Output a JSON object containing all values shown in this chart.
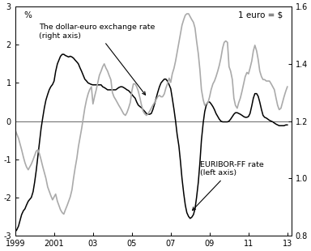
{
  "title_left": "%",
  "title_right": "1 euro = $",
  "left_label": "EURIBOR-FF rate\n(left axis)",
  "right_label": "The dollar-euro exchange rate\n(right axis)",
  "left_ylim": [
    -3,
    3
  ],
  "right_ylim": [
    0.8,
    1.6
  ],
  "left_yticks": [
    -3,
    -2,
    -1,
    0,
    1,
    2,
    3
  ],
  "right_yticks": [
    0.8,
    1.0,
    1.2,
    1.4,
    1.6
  ],
  "xticks": [
    1999,
    2001,
    2003,
    2005,
    2007,
    2009,
    2011,
    2013
  ],
  "xticklabels": [
    "1999",
    "2001",
    "03",
    "05",
    "07",
    "09",
    "11",
    "13"
  ],
  "xlim": [
    1999.0,
    2013.2
  ],
  "line_black_color": "#000000",
  "line_gray_color": "#aaaaaa",
  "background_color": "#ffffff",
  "zero_line_color": "#666666",
  "euribor_ff": {
    "x": [
      1999.0,
      1999.08,
      1999.17,
      1999.25,
      1999.33,
      1999.42,
      1999.5,
      1999.58,
      1999.67,
      1999.75,
      1999.83,
      1999.92,
      2000.0,
      2000.08,
      2000.17,
      2000.25,
      2000.33,
      2000.42,
      2000.5,
      2000.58,
      2000.67,
      2000.75,
      2000.83,
      2000.92,
      2001.0,
      2001.08,
      2001.17,
      2001.25,
      2001.33,
      2001.42,
      2001.5,
      2001.58,
      2001.67,
      2001.75,
      2001.83,
      2001.92,
      2002.0,
      2002.08,
      2002.17,
      2002.25,
      2002.33,
      2002.42,
      2002.5,
      2002.58,
      2002.67,
      2002.75,
      2002.83,
      2002.92,
      2003.0,
      2003.08,
      2003.17,
      2003.25,
      2003.33,
      2003.42,
      2003.5,
      2003.58,
      2003.67,
      2003.75,
      2003.83,
      2003.92,
      2004.0,
      2004.08,
      2004.17,
      2004.25,
      2004.33,
      2004.42,
      2004.5,
      2004.58,
      2004.67,
      2004.75,
      2004.83,
      2004.92,
      2005.0,
      2005.08,
      2005.17,
      2005.25,
      2005.33,
      2005.42,
      2005.5,
      2005.58,
      2005.67,
      2005.75,
      2005.83,
      2005.92,
      2006.0,
      2006.08,
      2006.17,
      2006.25,
      2006.33,
      2006.42,
      2006.5,
      2006.58,
      2006.67,
      2006.75,
      2006.83,
      2006.92,
      2007.0,
      2007.08,
      2007.17,
      2007.25,
      2007.33,
      2007.42,
      2007.5,
      2007.58,
      2007.67,
      2007.75,
      2007.83,
      2007.92,
      2008.0,
      2008.08,
      2008.17,
      2008.25,
      2008.33,
      2008.42,
      2008.5,
      2008.58,
      2008.67,
      2008.75,
      2008.83,
      2008.92,
      2009.0,
      2009.08,
      2009.17,
      2009.25,
      2009.33,
      2009.42,
      2009.5,
      2009.58,
      2009.67,
      2009.75,
      2009.83,
      2009.92,
      2010.0,
      2010.08,
      2010.17,
      2010.25,
      2010.33,
      2010.42,
      2010.5,
      2010.58,
      2010.67,
      2010.75,
      2010.83,
      2010.92,
      2011.0,
      2011.08,
      2011.17,
      2011.25,
      2011.33,
      2011.42,
      2011.5,
      2011.58,
      2011.67,
      2011.75,
      2011.83,
      2011.92,
      2012.0,
      2012.08,
      2012.17,
      2012.25,
      2012.33,
      2012.42,
      2012.5,
      2012.58,
      2012.67,
      2012.75,
      2012.83,
      2012.92,
      2013.0
    ],
    "y": [
      -2.9,
      -2.85,
      -2.75,
      -2.6,
      -2.45,
      -2.35,
      -2.3,
      -2.2,
      -2.1,
      -2.05,
      -2.0,
      -1.85,
      -1.6,
      -1.3,
      -0.9,
      -0.55,
      -0.2,
      0.1,
      0.35,
      0.55,
      0.7,
      0.82,
      0.9,
      0.96,
      1.05,
      1.3,
      1.5,
      1.6,
      1.7,
      1.75,
      1.75,
      1.72,
      1.7,
      1.68,
      1.7,
      1.68,
      1.65,
      1.6,
      1.55,
      1.5,
      1.4,
      1.3,
      1.2,
      1.1,
      1.05,
      1.0,
      0.98,
      0.96,
      0.95,
      0.95,
      0.95,
      0.95,
      0.95,
      0.95,
      0.9,
      0.88,
      0.85,
      0.82,
      0.82,
      0.82,
      0.82,
      0.82,
      0.82,
      0.85,
      0.88,
      0.9,
      0.9,
      0.88,
      0.85,
      0.82,
      0.8,
      0.75,
      0.7,
      0.65,
      0.6,
      0.5,
      0.42,
      0.38,
      0.35,
      0.3,
      0.25,
      0.2,
      0.18,
      0.18,
      0.2,
      0.3,
      0.45,
      0.6,
      0.75,
      0.9,
      1.0,
      1.05,
      1.1,
      1.1,
      1.05,
      0.95,
      0.85,
      0.6,
      0.3,
      0.0,
      -0.35,
      -0.65,
      -1.05,
      -1.5,
      -1.9,
      -2.2,
      -2.4,
      -2.5,
      -2.55,
      -2.52,
      -2.45,
      -2.3,
      -2.0,
      -1.6,
      -1.1,
      -0.5,
      -0.05,
      0.25,
      0.42,
      0.5,
      0.5,
      0.45,
      0.38,
      0.3,
      0.2,
      0.12,
      0.05,
      0.0,
      -0.02,
      -0.02,
      -0.02,
      -0.02,
      0.0,
      0.05,
      0.12,
      0.18,
      0.22,
      0.22,
      0.2,
      0.18,
      0.15,
      0.12,
      0.1,
      0.1,
      0.12,
      0.2,
      0.4,
      0.6,
      0.72,
      0.72,
      0.65,
      0.5,
      0.3,
      0.15,
      0.1,
      0.08,
      0.05,
      0.02,
      0.0,
      -0.02,
      -0.05,
      -0.08,
      -0.1,
      -0.12,
      -0.12,
      -0.12,
      -0.12,
      -0.1,
      -0.1
    ]
  },
  "exchange_rate": {
    "x": [
      1999.0,
      1999.08,
      1999.17,
      1999.25,
      1999.33,
      1999.42,
      1999.5,
      1999.58,
      1999.67,
      1999.75,
      1999.83,
      1999.92,
      2000.0,
      2000.08,
      2000.17,
      2000.25,
      2000.33,
      2000.42,
      2000.5,
      2000.58,
      2000.67,
      2000.75,
      2000.83,
      2000.92,
      2001.0,
      2001.08,
      2001.17,
      2001.25,
      2001.33,
      2001.42,
      2001.5,
      2001.58,
      2001.67,
      2001.75,
      2001.83,
      2001.92,
      2002.0,
      2002.08,
      2002.17,
      2002.25,
      2002.33,
      2002.42,
      2002.5,
      2002.58,
      2002.67,
      2002.75,
      2002.83,
      2002.92,
      2003.0,
      2003.08,
      2003.17,
      2003.25,
      2003.33,
      2003.42,
      2003.5,
      2003.58,
      2003.67,
      2003.75,
      2003.83,
      2003.92,
      2004.0,
      2004.08,
      2004.17,
      2004.25,
      2004.33,
      2004.42,
      2004.5,
      2004.58,
      2004.67,
      2004.75,
      2004.83,
      2004.92,
      2005.0,
      2005.08,
      2005.17,
      2005.25,
      2005.33,
      2005.42,
      2005.5,
      2005.58,
      2005.67,
      2005.75,
      2005.83,
      2005.92,
      2006.0,
      2006.08,
      2006.17,
      2006.25,
      2006.33,
      2006.42,
      2006.5,
      2006.58,
      2006.67,
      2006.75,
      2006.83,
      2006.92,
      2007.0,
      2007.08,
      2007.17,
      2007.25,
      2007.33,
      2007.42,
      2007.5,
      2007.58,
      2007.67,
      2007.75,
      2007.83,
      2007.92,
      2008.0,
      2008.08,
      2008.17,
      2008.25,
      2008.33,
      2008.42,
      2008.5,
      2008.58,
      2008.67,
      2008.75,
      2008.83,
      2008.92,
      2009.0,
      2009.08,
      2009.17,
      2009.25,
      2009.33,
      2009.42,
      2009.5,
      2009.58,
      2009.67,
      2009.75,
      2009.83,
      2009.92,
      2010.0,
      2010.08,
      2010.17,
      2010.25,
      2010.33,
      2010.42,
      2010.5,
      2010.58,
      2010.67,
      2010.75,
      2010.83,
      2010.92,
      2011.0,
      2011.08,
      2011.17,
      2011.25,
      2011.33,
      2011.42,
      2011.5,
      2011.58,
      2011.67,
      2011.75,
      2011.83,
      2011.92,
      2012.0,
      2012.08,
      2012.17,
      2012.25,
      2012.33,
      2012.42,
      2012.5,
      2012.58,
      2012.67,
      2012.75,
      2012.83,
      2012.92,
      2013.0
    ],
    "y": [
      1.17,
      1.155,
      1.14,
      1.12,
      1.1,
      1.075,
      1.055,
      1.04,
      1.03,
      1.04,
      1.05,
      1.065,
      1.08,
      1.095,
      1.1,
      1.085,
      1.065,
      1.04,
      1.02,
      1.0,
      0.97,
      0.955,
      0.94,
      0.925,
      0.935,
      0.945,
      0.92,
      0.905,
      0.89,
      0.88,
      0.875,
      0.89,
      0.905,
      0.92,
      0.935,
      0.96,
      1.0,
      1.035,
      1.07,
      1.11,
      1.14,
      1.175,
      1.21,
      1.245,
      1.275,
      1.295,
      1.31,
      1.32,
      1.26,
      1.285,
      1.31,
      1.335,
      1.36,
      1.375,
      1.39,
      1.4,
      1.385,
      1.375,
      1.36,
      1.345,
      1.3,
      1.285,
      1.275,
      1.265,
      1.255,
      1.245,
      1.235,
      1.225,
      1.22,
      1.23,
      1.245,
      1.265,
      1.305,
      1.33,
      1.33,
      1.32,
      1.305,
      1.28,
      1.255,
      1.235,
      1.225,
      1.22,
      1.225,
      1.235,
      1.245,
      1.255,
      1.265,
      1.275,
      1.285,
      1.29,
      1.285,
      1.285,
      1.295,
      1.315,
      1.33,
      1.35,
      1.335,
      1.365,
      1.385,
      1.41,
      1.44,
      1.475,
      1.505,
      1.535,
      1.555,
      1.57,
      1.575,
      1.575,
      1.565,
      1.555,
      1.545,
      1.525,
      1.48,
      1.435,
      1.38,
      1.31,
      1.275,
      1.255,
      1.26,
      1.265,
      1.285,
      1.31,
      1.33,
      1.34,
      1.355,
      1.375,
      1.395,
      1.42,
      1.455,
      1.475,
      1.48,
      1.475,
      1.39,
      1.375,
      1.345,
      1.28,
      1.255,
      1.245,
      1.265,
      1.28,
      1.305,
      1.33,
      1.355,
      1.37,
      1.365,
      1.385,
      1.41,
      1.445,
      1.465,
      1.445,
      1.415,
      1.375,
      1.355,
      1.345,
      1.345,
      1.34,
      1.34,
      1.34,
      1.33,
      1.32,
      1.31,
      1.28,
      1.255,
      1.24,
      1.245,
      1.265,
      1.285,
      1.305,
      1.32
    ]
  }
}
